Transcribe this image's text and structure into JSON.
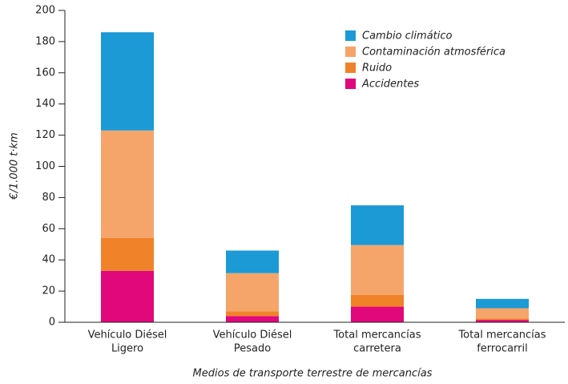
{
  "chart_data": {
    "type": "stacked_bar",
    "categories": [
      [
        "Vehículo Diésel",
        "Ligero"
      ],
      [
        "Vehículo Diésel",
        "Pesado"
      ],
      [
        "Total mercancías",
        "carretera"
      ],
      [
        "Total mercancías",
        "ferrocarril"
      ]
    ],
    "series": [
      {
        "name": "Accidentes",
        "color": "#e0087a",
        "values": [
          33,
          4,
          10,
          1.5
        ]
      },
      {
        "name": "Ruido",
        "color": "#f0832a",
        "values": [
          21,
          3,
          7.5,
          1
        ]
      },
      {
        "name": "Contaminación atmosférica",
        "color": "#f5a56a",
        "values": [
          69,
          24.5,
          32,
          6.5
        ]
      },
      {
        "name": "Cambio climático",
        "color": "#1b9ad6",
        "values": [
          63,
          14.5,
          25.5,
          6
        ]
      }
    ],
    "ylim": [
      0,
      200
    ],
    "yticks": [
      0,
      20,
      40,
      60,
      80,
      100,
      120,
      140,
      160,
      180,
      200
    ],
    "ylabel": "€/1.000 t·km",
    "xlabel": "Medios de transporte terrestre de mercancías",
    "legend": "top-right"
  }
}
